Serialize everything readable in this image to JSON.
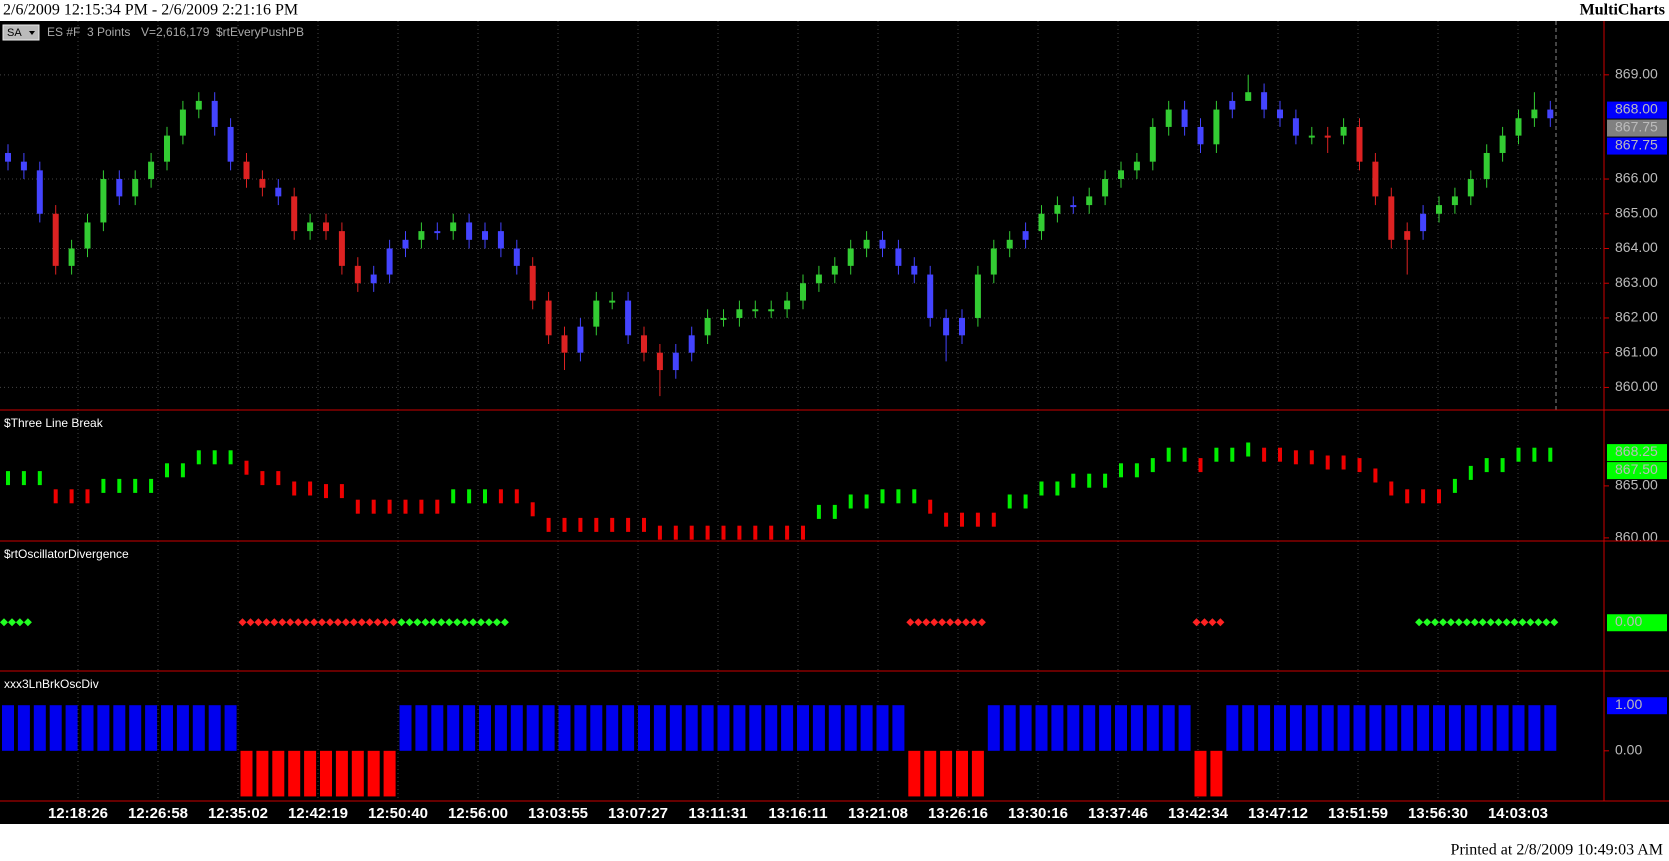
{
  "header": {
    "range": "2/6/2009 12:15:34 PM - 2/6/2009 2:21:16 PM",
    "app": "MultiCharts"
  },
  "toolbar": {
    "button": "SA",
    "symbol": "ES #F",
    "resolution": "3 Points",
    "volume": "V=2,616,179"
  },
  "chart_data": [
    {
      "type": "candlestick",
      "title": "$rtEveryPushPB",
      "open": [
        866.75,
        866.5,
        866.25,
        865,
        863.5,
        864,
        864.75,
        866,
        865.5,
        866,
        866.5,
        867.25,
        868,
        868.25,
        867.5,
        866.5,
        866,
        865.75,
        865.5,
        864.5,
        864.75,
        864.5,
        863.5,
        863,
        863.25,
        864,
        864.25,
        864.5,
        864.5,
        864.75,
        864.25,
        864.5,
        864,
        863.5,
        862.5,
        861.5,
        861,
        861.75,
        862.5,
        862.5,
        861.5,
        861,
        860.5,
        861,
        861.5,
        862,
        862,
        862.25,
        862.25,
        862.25,
        862.5,
        863,
        863.25,
        863.5,
        864,
        864.25,
        864,
        863.5,
        863.25,
        862,
        861.5,
        862,
        863.25,
        864,
        864.25,
        864.5,
        865,
        865.25,
        865.25,
        865.5,
        866,
        866.25,
        866.5,
        867.5,
        868,
        867.5,
        867,
        868,
        868.25,
        868.5,
        868,
        867.75,
        867.25,
        867.25,
        867.25,
        867.5,
        866.5,
        865.5,
        864.25,
        864.5,
        865,
        865.25,
        865.5,
        866,
        866.75,
        867.25,
        867.75,
        868
      ],
      "high": [
        867,
        866.75,
        866.5,
        865.25,
        864.25,
        865,
        866.25,
        866.25,
        866.25,
        866.75,
        867.5,
        868.25,
        868.5,
        868.5,
        867.75,
        866.75,
        866.25,
        866,
        865.75,
        865,
        865,
        864.75,
        863.75,
        863.5,
        864.25,
        864.5,
        864.75,
        864.75,
        865,
        865,
        864.75,
        864.75,
        864.25,
        863.75,
        862.75,
        861.75,
        862,
        862.75,
        862.75,
        862.75,
        861.75,
        861.25,
        861.25,
        861.75,
        862.25,
        862.25,
        862.5,
        862.5,
        862.5,
        862.75,
        863.25,
        863.5,
        863.75,
        864.25,
        864.5,
        864.5,
        864.25,
        863.75,
        863.5,
        862.25,
        862.25,
        863.5,
        864.25,
        864.5,
        864.75,
        865.25,
        865.5,
        865.5,
        865.75,
        866.25,
        866.5,
        866.75,
        867.75,
        868.25,
        868.25,
        867.75,
        868.25,
        868.5,
        869,
        868.75,
        868.25,
        868,
        867.5,
        867.5,
        867.75,
        867.75,
        866.75,
        865.75,
        864.75,
        865.25,
        865.5,
        865.75,
        866.25,
        867,
        867.5,
        868,
        868.5,
        868.25
      ],
      "low": [
        866.25,
        866,
        864.75,
        863.25,
        863.25,
        863.75,
        864.5,
        865.25,
        865.25,
        865.75,
        866.25,
        867,
        867.75,
        867.25,
        866.25,
        865.75,
        865.5,
        865.25,
        864.25,
        864.25,
        864.25,
        863.25,
        862.75,
        862.75,
        863,
        863.75,
        864,
        864.25,
        864.25,
        864,
        864,
        863.75,
        863.25,
        862.25,
        861.25,
        860.5,
        860.75,
        861.5,
        862.25,
        861.25,
        860.75,
        859.75,
        860.25,
        860.75,
        861.25,
        861.75,
        861.75,
        862,
        862,
        862,
        862.25,
        862.75,
        863,
        863.25,
        863.75,
        863.75,
        863.25,
        863,
        861.75,
        860.75,
        861.25,
        861.75,
        863,
        863.75,
        864,
        864.25,
        864.75,
        865,
        865,
        865.25,
        865.75,
        866,
        866.25,
        867.25,
        867.25,
        866.75,
        866.75,
        867.75,
        868.25,
        867.75,
        867.5,
        867,
        867,
        866.75,
        867,
        866.25,
        865.25,
        864,
        863.25,
        864.25,
        864.75,
        865,
        865.25,
        865.75,
        866.5,
        867,
        867.5,
        867.5
      ],
      "close": [
        866.5,
        866.25,
        865,
        863.5,
        864,
        864.75,
        866,
        865.5,
        866,
        866.5,
        867.25,
        868,
        868.25,
        867.5,
        866.5,
        866,
        865.75,
        865.5,
        864.5,
        864.75,
        864.5,
        863.5,
        863,
        863.25,
        864,
        864.25,
        864.5,
        864.5,
        864.75,
        864.25,
        864.5,
        864,
        863.5,
        862.5,
        861.5,
        861,
        861.75,
        862.5,
        862.5,
        861.5,
        861,
        860.5,
        861,
        861.5,
        862,
        862,
        862.25,
        862.25,
        862.25,
        862.5,
        863,
        863.25,
        863.5,
        864,
        864.25,
        864,
        863.5,
        863.25,
        862,
        861.5,
        862,
        863.25,
        864,
        864.25,
        864.5,
        865,
        865.25,
        865.25,
        865.5,
        866,
        866.25,
        866.5,
        867.5,
        868,
        867.5,
        867,
        868,
        868.25,
        868.5,
        868,
        867.75,
        867.25,
        867.25,
        867.25,
        867.5,
        866.5,
        865.5,
        864.25,
        864.5,
        865,
        865.25,
        865.5,
        866,
        866.75,
        867.25,
        867.75,
        868,
        867.75
      ],
      "colors": [
        "#4444ff",
        "#4444ff",
        "#4444ff",
        "#dd2222",
        "#33cc33",
        "#33cc33",
        "#33cc33",
        "#4444ff",
        "#33cc33",
        "#33cc33",
        "#33cc33",
        "#33cc33",
        "#33cc33",
        "#4444ff",
        "#4444ff",
        "#dd2222",
        "#dd2222",
        "#4444ff",
        "#dd2222",
        "#33cc33",
        "#dd2222",
        "#dd2222",
        "#dd2222",
        "#4444ff",
        "#4444ff",
        "#4444ff",
        "#33cc33",
        "#4444ff",
        "#33cc33",
        "#4444ff",
        "#4444ff",
        "#4444ff",
        "#4444ff",
        "#dd2222",
        "#dd2222",
        "#dd2222",
        "#4444ff",
        "#33cc33",
        "#33cc33",
        "#4444ff",
        "#dd2222",
        "#dd2222",
        "#4444ff",
        "#4444ff",
        "#33cc33",
        "#33cc33",
        "#33cc33",
        "#33cc33",
        "#33cc33",
        "#33cc33",
        "#33cc33",
        "#33cc33",
        "#33cc33",
        "#33cc33",
        "#33cc33",
        "#4444ff",
        "#4444ff",
        "#4444ff",
        "#4444ff",
        "#4444ff",
        "#4444ff",
        "#33cc33",
        "#33cc33",
        "#33cc33",
        "#4444ff",
        "#33cc33",
        "#33cc33",
        "#4444ff",
        "#33cc33",
        "#33cc33",
        "#33cc33",
        "#33cc33",
        "#33cc33",
        "#33cc33",
        "#4444ff",
        "#4444ff",
        "#33cc33",
        "#4444ff",
        "#33cc33",
        "#4444ff",
        "#4444ff",
        "#4444ff",
        "#33cc33",
        "#dd2222",
        "#33cc33",
        "#dd2222",
        "#dd2222",
        "#dd2222",
        "#dd2222",
        "#4444ff",
        "#33cc33",
        "#33cc33",
        "#33cc33",
        "#33cc33",
        "#33cc33",
        "#33cc33",
        "#33cc33",
        "#4444ff"
      ],
      "ylim": [
        859.35,
        870.55
      ],
      "yticks": [
        {
          "value": 860,
          "label": "860.00"
        },
        {
          "value": 861,
          "label": "861.00"
        },
        {
          "value": 862,
          "label": "862.00"
        },
        {
          "value": 863,
          "label": "863.00"
        },
        {
          "value": 864,
          "label": "864.00"
        },
        {
          "value": 865,
          "label": "865.00"
        },
        {
          "value": 866,
          "label": "866.00"
        },
        {
          "value": 869,
          "label": "869.00"
        }
      ],
      "grid": true,
      "markers": [
        {
          "value": 868,
          "label": "868.00",
          "color": "#0000ff"
        },
        {
          "value": 867.75,
          "label": "867.75",
          "color": "#808080"
        },
        {
          "value": 867.75,
          "label": "867.75",
          "color": "#0000ff"
        }
      ]
    },
    {
      "type": "dash",
      "title": "$Three Line Break",
      "values": [
        865.75,
        865.75,
        865.75,
        864,
        864,
        864,
        865,
        865,
        865,
        865,
        866.5,
        866.5,
        867.75,
        867.75,
        867.75,
        866.75,
        865.75,
        865.75,
        864.75,
        864.75,
        864.5,
        864.5,
        863,
        863,
        863,
        863,
        863,
        863,
        864,
        864,
        864,
        864,
        864,
        862.75,
        861.25,
        861.25,
        861.25,
        861.25,
        861.25,
        861.25,
        861.25,
        860.5,
        860.5,
        860.5,
        860.5,
        860.5,
        860.5,
        860.5,
        860.5,
        860.5,
        860.5,
        862.5,
        862.5,
        863.5,
        863.5,
        864,
        864,
        864,
        863,
        861.75,
        861.75,
        861.75,
        861.75,
        863.5,
        863.5,
        864.75,
        864.75,
        865.5,
        865.5,
        865.5,
        866.5,
        866.5,
        867,
        868,
        868,
        867,
        868,
        868,
        868.5,
        868,
        868,
        867.75,
        867.75,
        867.25,
        867.25,
        867,
        866,
        864.75,
        864,
        864,
        864,
        865,
        866.25,
        867,
        867,
        868,
        868,
        868
      ],
      "colors": [
        "#00ee00",
        "#00ee00",
        "#00ee00",
        "#ee0000",
        "#ee0000",
        "#ee0000",
        "#00ee00",
        "#00ee00",
        "#00ee00",
        "#00ee00",
        "#00ee00",
        "#00ee00",
        "#00ee00",
        "#00ee00",
        "#00ee00",
        "#ee0000",
        "#ee0000",
        "#ee0000",
        "#ee0000",
        "#ee0000",
        "#ee0000",
        "#ee0000",
        "#ee0000",
        "#ee0000",
        "#ee0000",
        "#ee0000",
        "#ee0000",
        "#ee0000",
        "#00ee00",
        "#00ee00",
        "#00ee00",
        "#ee0000",
        "#ee0000",
        "#ee0000",
        "#ee0000",
        "#ee0000",
        "#ee0000",
        "#ee0000",
        "#ee0000",
        "#ee0000",
        "#ee0000",
        "#ee0000",
        "#ee0000",
        "#ee0000",
        "#ee0000",
        "#ee0000",
        "#ee0000",
        "#ee0000",
        "#ee0000",
        "#ee0000",
        "#ee0000",
        "#00ee00",
        "#00ee00",
        "#00ee00",
        "#00ee00",
        "#00ee00",
        "#00ee00",
        "#00ee00",
        "#ee0000",
        "#ee0000",
        "#ee0000",
        "#ee0000",
        "#ee0000",
        "#00ee00",
        "#00ee00",
        "#00ee00",
        "#00ee00",
        "#00ee00",
        "#00ee00",
        "#00ee00",
        "#00ee00",
        "#00ee00",
        "#00ee00",
        "#00ee00",
        "#00ee00",
        "#ee0000",
        "#00ee00",
        "#00ee00",
        "#00ee00",
        "#ee0000",
        "#ee0000",
        "#ee0000",
        "#ee0000",
        "#ee0000",
        "#ee0000",
        "#ee0000",
        "#ee0000",
        "#ee0000",
        "#ee0000",
        "#ee0000",
        "#ee0000",
        "#00ee00",
        "#00ee00",
        "#00ee00",
        "#00ee00",
        "#00ee00",
        "#00ee00",
        "#00ee00"
      ],
      "ylim": [
        859.7,
        872.3
      ],
      "yticks": [
        {
          "value": 860,
          "label": "860.00"
        },
        {
          "value": 865,
          "label": "865.00"
        }
      ],
      "markers": [
        {
          "value": 868.25,
          "label": "868.25",
          "color": "#00ff00"
        },
        {
          "value": 867.5,
          "label": "867.50",
          "color": "#00ff00"
        }
      ]
    },
    {
      "type": "dot",
      "title": "$rtOscillatorDivergence",
      "values": [
        0,
        0,
        null,
        null,
        null,
        null,
        null,
        null,
        null,
        null,
        null,
        null,
        null,
        null,
        null,
        0,
        0,
        0,
        0,
        0,
        0,
        0,
        0,
        0,
        0,
        0,
        0,
        0,
        0,
        0,
        0,
        0,
        null,
        null,
        null,
        null,
        null,
        null,
        null,
        null,
        null,
        null,
        null,
        null,
        null,
        null,
        null,
        null,
        null,
        null,
        null,
        null,
        null,
        null,
        null,
        null,
        null,
        0,
        0,
        0,
        0,
        0,
        null,
        null,
        null,
        null,
        null,
        null,
        null,
        null,
        null,
        null,
        null,
        null,
        null,
        0,
        0,
        null,
        null,
        null,
        null,
        null,
        null,
        null,
        null,
        null,
        null,
        null,
        null,
        0,
        0,
        0,
        0,
        0,
        0,
        0,
        0,
        0
      ],
      "colors": [
        "#22ff22",
        "#22ff22",
        null,
        null,
        null,
        null,
        null,
        null,
        null,
        null,
        null,
        null,
        null,
        null,
        null,
        "#ff2222",
        "#ff2222",
        "#ff2222",
        "#ff2222",
        "#ff2222",
        "#ff2222",
        "#ff2222",
        "#ff2222",
        "#ff2222",
        "#ff2222",
        "#22ff22",
        "#22ff22",
        "#22ff22",
        "#22ff22",
        "#22ff22",
        "#22ff22",
        "#22ff22",
        null,
        null,
        null,
        null,
        null,
        null,
        null,
        null,
        null,
        null,
        null,
        null,
        null,
        null,
        null,
        null,
        null,
        null,
        null,
        null,
        null,
        null,
        null,
        null,
        null,
        "#ff2222",
        "#ff2222",
        "#ff2222",
        "#ff2222",
        "#ff2222",
        null,
        null,
        null,
        null,
        null,
        null,
        null,
        null,
        null,
        null,
        null,
        null,
        null,
        "#ff2222",
        "#ff2222",
        null,
        null,
        null,
        null,
        null,
        null,
        null,
        null,
        null,
        null,
        null,
        null,
        "#22ff22",
        "#22ff22",
        "#22ff22",
        "#22ff22",
        "#22ff22",
        "#22ff22",
        "#22ff22",
        "#22ff22",
        "#22ff22"
      ],
      "ylim": [
        -0.6,
        1
      ],
      "markers": [
        {
          "value": 0,
          "label": "0.00",
          "color": "#00ff00"
        }
      ]
    },
    {
      "type": "bar",
      "title": "xxx3LnBrkOscDiv",
      "values": [
        1,
        1,
        1,
        1,
        1,
        1,
        1,
        1,
        1,
        1,
        1,
        1,
        1,
        1,
        1,
        -1,
        -1,
        -1,
        -1,
        -1,
        -1,
        -1,
        -1,
        -1,
        -1,
        1,
        1,
        1,
        1,
        1,
        1,
        1,
        1,
        1,
        1,
        1,
        1,
        1,
        1,
        1,
        1,
        1,
        1,
        1,
        1,
        1,
        1,
        1,
        1,
        1,
        1,
        1,
        1,
        1,
        1,
        1,
        1,
        -1,
        -1,
        -1,
        -1,
        -1,
        1,
        1,
        1,
        1,
        1,
        1,
        1,
        1,
        1,
        1,
        1,
        1,
        1,
        -1,
        -1,
        1,
        1,
        1,
        1,
        1,
        1,
        1,
        1,
        1,
        1,
        1,
        1,
        1,
        1,
        1,
        1,
        1,
        1,
        1,
        1,
        1
      ],
      "colors": [
        "#0000ee",
        "#0000ee",
        "#0000ee",
        "#0000ee",
        "#0000ee",
        "#0000ee",
        "#0000ee",
        "#0000ee",
        "#0000ee",
        "#0000ee",
        "#0000ee",
        "#0000ee",
        "#0000ee",
        "#0000ee",
        "#0000ee",
        "#ff0000",
        "#ff0000",
        "#ff0000",
        "#ff0000",
        "#ff0000",
        "#ff0000",
        "#ff0000",
        "#ff0000",
        "#ff0000",
        "#ff0000",
        "#0000ee",
        "#0000ee",
        "#0000ee",
        "#0000ee",
        "#0000ee",
        "#0000ee",
        "#0000ee",
        "#0000ee",
        "#0000ee",
        "#0000ee",
        "#0000ee",
        "#0000ee",
        "#0000ee",
        "#0000ee",
        "#0000ee",
        "#0000ee",
        "#0000ee",
        "#0000ee",
        "#0000ee",
        "#0000ee",
        "#0000ee",
        "#0000ee",
        "#0000ee",
        "#0000ee",
        "#0000ee",
        "#0000ee",
        "#0000ee",
        "#0000ee",
        "#0000ee",
        "#0000ee",
        "#0000ee",
        "#0000ee",
        "#ff0000",
        "#ff0000",
        "#ff0000",
        "#ff0000",
        "#ff0000",
        "#0000ee",
        "#0000ee",
        "#0000ee",
        "#0000ee",
        "#0000ee",
        "#0000ee",
        "#0000ee",
        "#0000ee",
        "#0000ee",
        "#0000ee",
        "#0000ee",
        "#0000ee",
        "#0000ee",
        "#ff0000",
        "#ff0000",
        "#0000ee",
        "#0000ee",
        "#0000ee",
        "#0000ee",
        "#0000ee",
        "#0000ee",
        "#0000ee",
        "#0000ee",
        "#0000ee",
        "#0000ee",
        "#0000ee",
        "#0000ee",
        "#0000ee",
        "#0000ee",
        "#0000ee",
        "#0000ee",
        "#0000ee",
        "#0000ee",
        "#0000ee",
        "#0000ee",
        "#0000ee"
      ],
      "ylim": [
        -1.1,
        1.75
      ],
      "yticks": [
        {
          "value": 0,
          "label": "0.00"
        }
      ],
      "markers": [
        {
          "value": 1,
          "label": "1.00",
          "color": "#0000ff"
        }
      ]
    }
  ],
  "x_axis": {
    "labels": [
      "12:18:26",
      "12:26:58",
      "12:35:02",
      "12:42:19",
      "12:50:40",
      "12:56:00",
      "13:03:55",
      "13:07:27",
      "13:11:31",
      "13:16:11",
      "13:21:08",
      "13:26:16",
      "13:30:16",
      "13:37:46",
      "13:42:34",
      "13:47:12",
      "13:51:59",
      "13:56:30",
      "14:03:03"
    ]
  },
  "footer": "Printed at 2/8/2009 10:49:03 AM"
}
